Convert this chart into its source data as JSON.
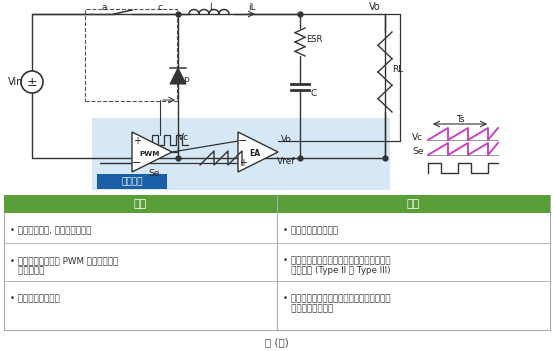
{
  "title": "圖 (一)",
  "green_color": "#5a9e3a",
  "table_border": "#aaaaaa",
  "pros_header": "優點",
  "cons_header": "缺點",
  "pros": [
    "• 單一回授路徑, 簡化控制器設計",
    "• 有較大的三角波在 PWM 輸入端，降低\n   占空比誤差",
    "• 較常見在早期設計"
  ],
  "cons": [
    "• 補償迴路速度常較慢",
    "• 由電感器與輸出電容產生雙極點，補償迴路\n   不易設計 (Type II 或 Type III)",
    "• 誤差放大器增益被輸入電壓影響，達到寬輸\n   入電壓設計有挑戰"
  ],
  "control_bg": "#d6e8f5",
  "label_bg": "#1a5fa8",
  "label_text": "電壓模式",
  "magenta": "#cc44bb",
  "pwm_label": "PWM",
  "ea_label": "EA",
  "vc_label": "Vc",
  "se_label": "Se",
  "vo_label": "Vo",
  "vref_label": "Vref",
  "ts_label": "Ts",
  "vin_label": "Vin",
  "vo_top_label": "Vo",
  "il_label": "iL",
  "l_label": "L",
  "esr_label": "ESR",
  "c_label": "C",
  "rl_label": "RL",
  "a_label": "a",
  "c_node_label": "c",
  "p_label": "p"
}
